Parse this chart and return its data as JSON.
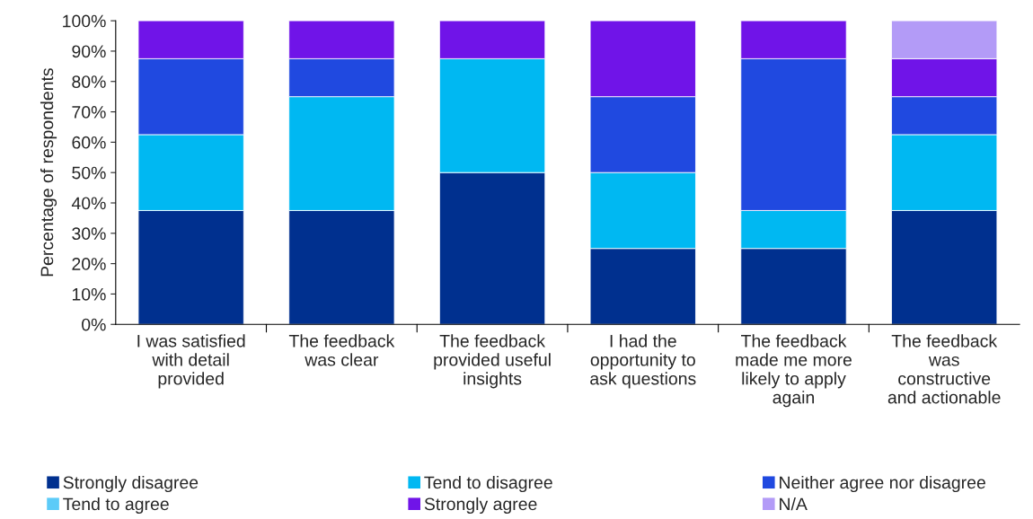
{
  "chart_data": {
    "type": "bar",
    "stacked": true,
    "ylabel": "Percentage of respondents",
    "categories": [
      "I was satisfied\nwith detail\nprovided",
      "The feedback\nwas clear",
      "The feedback\nprovided useful\ninsights",
      "I had the\nopportunity to\nask questions",
      "The feedback\nmade me more\nlikely to apply\nagain",
      "The feedback\nwas\nconstructive\nand actionable"
    ],
    "series": [
      {
        "name": "Strongly disagree",
        "color": "#00308f",
        "values": [
          37.5,
          37.5,
          50,
          25,
          25,
          37.5
        ]
      },
      {
        "name": "Tend to disagree",
        "color": "#00b8f2",
        "values": [
          25,
          37.5,
          37.5,
          25,
          12.5,
          25
        ]
      },
      {
        "name": "Neither agree nor disagree",
        "color": "#2049e0",
        "values": [
          25,
          12.5,
          0,
          25,
          50,
          12.5
        ]
      },
      {
        "name": "Tend to agree",
        "color": "#5ccbf8",
        "values": [
          0,
          0,
          0,
          0,
          0,
          0
        ]
      },
      {
        "name": "Strongly agree",
        "color": "#7014e8",
        "values": [
          12.5,
          12.5,
          12.5,
          25,
          12.5,
          12.5
        ]
      },
      {
        "name": "N/A",
        "color": "#b39bf7",
        "values": [
          0,
          0,
          0,
          0,
          0,
          12.5
        ]
      }
    ],
    "ylim": [
      0,
      100
    ],
    "yticks": [
      {
        "value": 0,
        "label": "0%"
      },
      {
        "value": 10,
        "label": "10%"
      },
      {
        "value": 20,
        "label": "20%"
      },
      {
        "value": 30,
        "label": "30%"
      },
      {
        "value": 40,
        "label": "40%"
      },
      {
        "value": 50,
        "label": "50%"
      },
      {
        "value": 60,
        "label": "60%"
      },
      {
        "value": 70,
        "label": "70%"
      },
      {
        "value": 80,
        "label": "80%"
      },
      {
        "value": 90,
        "label": "90%"
      },
      {
        "value": 100,
        "label": "100%"
      }
    ],
    "grid": false,
    "legend": "bottom"
  }
}
